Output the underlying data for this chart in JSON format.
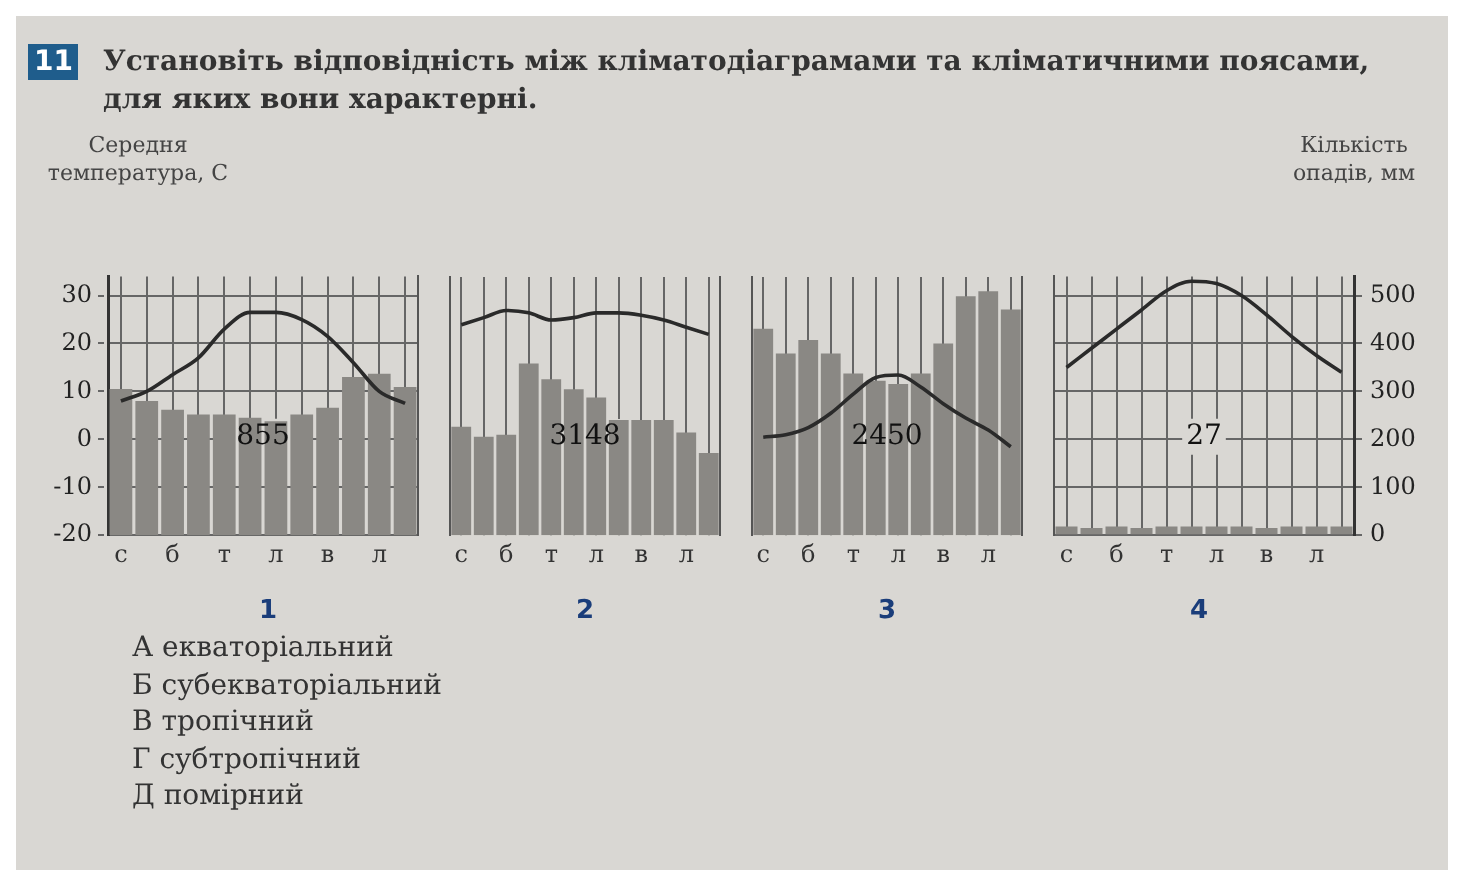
{
  "chart_data": [
    {
      "type": "other",
      "title": "Установіть відповідність між кліматодіаграмами та кліматичними поясами, для яких вони характерні.",
      "annotations": [
        "11"
      ]
    },
    {
      "type": "bar",
      "xlabel": "1",
      "ylabel": "Середня температура, С",
      "categories": [
        "с",
        null,
        "б",
        null,
        "т",
        null,
        "л",
        null,
        "в",
        null,
        "л",
        null
      ],
      "ylim": [
        -20,
        34
      ],
      "yticks": [
        -20,
        -10,
        0,
        10,
        20,
        30
      ],
      "y2lim": [
        0,
        540
      ],
      "grid": true,
      "legend": false,
      "marker": "none",
      "annotations": [
        "855"
      ],
      "series": [
        {
          "type": "bar",
          "axis": "y2",
          "color": "#8a8884",
          "values": [
            305,
            280,
            262,
            252,
            252,
            245,
            238,
            252,
            266,
            330,
            337,
            309
          ]
        },
        {
          "type": "line",
          "axis": "y",
          "color": "#2a2a2a",
          "values": [
            8,
            10,
            13.5,
            17,
            23,
            26.5,
            26.5,
            25,
            21.5,
            16,
            10,
            7.5
          ]
        }
      ]
    },
    {
      "type": "bar",
      "xlabel": "2",
      "categories": [
        "с",
        null,
        "б",
        null,
        "т",
        null,
        "л",
        null,
        "в",
        null,
        "л",
        null
      ],
      "ylim": [
        -20,
        34
      ],
      "y2lim": [
        0,
        540
      ],
      "tick_labels": "x",
      "grid": "x",
      "legend": false,
      "marker": "none",
      "annotations": [
        "3148"
      ],
      "series": [
        {
          "type": "bar",
          "axis": "y2",
          "color": "#8a8884",
          "values": [
            227,
            206,
            210,
            359,
            326,
            305,
            288,
            241,
            241,
            241,
            215,
            172
          ]
        },
        {
          "type": "line",
          "axis": "y",
          "color": "#2a2a2a",
          "values": [
            24,
            25.5,
            27,
            26.5,
            25,
            25.5,
            26.5,
            26.5,
            26,
            25,
            23.5,
            22
          ]
        }
      ]
    },
    {
      "type": "bar",
      "xlabel": "3",
      "categories": [
        "с",
        null,
        "б",
        null,
        "т",
        null,
        "л",
        null,
        "в",
        null,
        "л",
        null
      ],
      "ylim": [
        -20,
        34
      ],
      "y2lim": [
        0,
        540
      ],
      "tick_labels": "x",
      "grid": "x",
      "legend": false,
      "marker": "none",
      "annotations": [
        "2450"
      ],
      "series": [
        {
          "type": "bar",
          "axis": "y2",
          "color": "#8a8884",
          "values": [
            432,
            380,
            408,
            380,
            338,
            323,
            316,
            338,
            401,
            500,
            510,
            472
          ]
        },
        {
          "type": "line",
          "axis": "y",
          "color": "#2a2a2a",
          "values": [
            0.5,
            1,
            2.5,
            5.5,
            9.5,
            13,
            13.5,
            11,
            7.5,
            4.5,
            2,
            -1.5
          ]
        }
      ]
    },
    {
      "type": "bar",
      "xlabel": "4",
      "y2label": "Кількість опадів, мм",
      "categories": [
        "с",
        null,
        "б",
        null,
        "т",
        null,
        "л",
        null,
        "в",
        null,
        "л",
        null
      ],
      "ylim": [
        -20,
        34
      ],
      "y2lim": [
        0,
        540
      ],
      "y2ticks": [
        0,
        100,
        200,
        300,
        400,
        500
      ],
      "grid": true,
      "legend": false,
      "marker": "none",
      "annotations": [
        "27"
      ],
      "series": [
        {
          "type": "bar",
          "axis": "y2",
          "color": "#8a8884",
          "values": [
            18,
            15,
            18,
            15,
            18,
            18,
            18,
            18,
            15,
            18,
            18,
            18
          ]
        },
        {
          "type": "line",
          "axis": "y",
          "color": "#2a2a2a",
          "values": [
            15,
            19,
            23,
            27,
            31,
            33,
            32.5,
            30,
            26,
            21.5,
            17.5,
            14
          ]
        }
      ]
    },
    {
      "type": "other",
      "annotations": [
        "А екваторіальний",
        "Б субекваторіальний",
        "В тропічний",
        "Г субтропічний",
        "Д помірний"
      ]
    }
  ]
}
